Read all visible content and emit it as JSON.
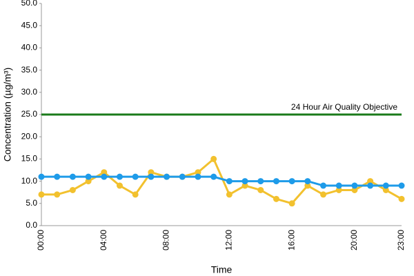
{
  "chart_data": {
    "type": "line",
    "x_label": "Time",
    "y_label": "Concentration (µg/m³)",
    "categories": [
      "00:00",
      null,
      null,
      null,
      "04:00",
      null,
      null,
      null,
      "08:00",
      null,
      null,
      null,
      "12:00",
      null,
      null,
      null,
      "16:00",
      null,
      null,
      null,
      "20:00",
      null,
      null,
      "23:00"
    ],
    "series": [
      {
        "color": "#f2c12e",
        "values": [
          7,
          7,
          8,
          10,
          12,
          9,
          7,
          12,
          11,
          11,
          12,
          15,
          7,
          9,
          8,
          6,
          5,
          9,
          7,
          8,
          8,
          10,
          8,
          6
        ]
      },
      {
        "color": "#1e9be9",
        "values": [
          11,
          11,
          11,
          11,
          11,
          11,
          11,
          11,
          11,
          11,
          11,
          11,
          10,
          10,
          10,
          10,
          10,
          10,
          9,
          9,
          9,
          9,
          9,
          9
        ]
      }
    ],
    "reference_line": {
      "value": 25,
      "label": "24 Hour Air Quality Objective",
      "color": "#1a7a1a"
    },
    "ylim": [
      0,
      50
    ],
    "yticks": [
      {
        "value": 0,
        "label": "0.0"
      },
      {
        "value": 5,
        "label": "5.0"
      },
      {
        "value": 10,
        "label": "10.0"
      },
      {
        "value": 15,
        "label": "15.0"
      },
      {
        "value": 20,
        "label": "20.0"
      },
      {
        "value": 25,
        "label": "25.0"
      },
      {
        "value": 30,
        "label": "30.0"
      },
      {
        "value": 35,
        "label": "35.0"
      },
      {
        "value": 40,
        "label": "40.0"
      },
      {
        "value": 45,
        "label": "45.0"
      },
      {
        "value": 50,
        "label": "50.0"
      }
    ],
    "grid": false
  }
}
